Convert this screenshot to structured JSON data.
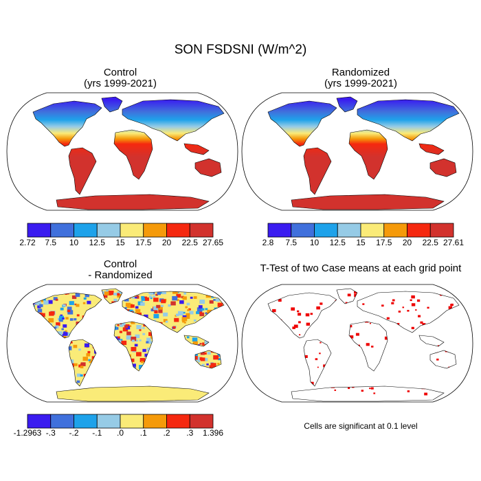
{
  "figure": {
    "title": "SON FSDSNI (W/m^2)"
  },
  "panels": {
    "control": {
      "title_line1": "Control",
      "title_line2": "(yrs 1999-2021)"
    },
    "randomized": {
      "title_line1": "Randomized",
      "title_line2": "(yrs 1999-2021)"
    },
    "difference": {
      "title_line1": "Control",
      "title_line2": "- Randomized"
    },
    "ttest": {
      "title": "T-Test of two Case means at each grid point",
      "note": "Cells are significant at 0.1 level"
    }
  },
  "colorbars": {
    "abs_colors": [
      "#3a1cf0",
      "#4070dc",
      "#1ea2ea",
      "#96cbe6",
      "#faeb78",
      "#f59a0a",
      "#f5280f",
      "#d2322d"
    ],
    "diff_colors": [
      "#3a1cf0",
      "#4070dc",
      "#1ea2ea",
      "#96cbe6",
      "#faeb78",
      "#f59a0a",
      "#f5280f",
      "#d2322d"
    ],
    "control_labels": [
      "2.72",
      "7.5",
      "10",
      "12.5",
      "15",
      "17.5",
      "20",
      "22.5",
      "27.65"
    ],
    "randomized_labels": [
      "2.8",
      "7.5",
      "10",
      "12.5",
      "15",
      "17.5",
      "20",
      "22.5",
      "27.61"
    ],
    "difference_labels": [
      "-1.2963",
      "-.3",
      "-.2",
      "-.1",
      ".0",
      ".1",
      ".2",
      ".3",
      "1.396"
    ]
  },
  "legend_colors": {
    "significant": "#ee0000",
    "coastline": "#000000"
  }
}
